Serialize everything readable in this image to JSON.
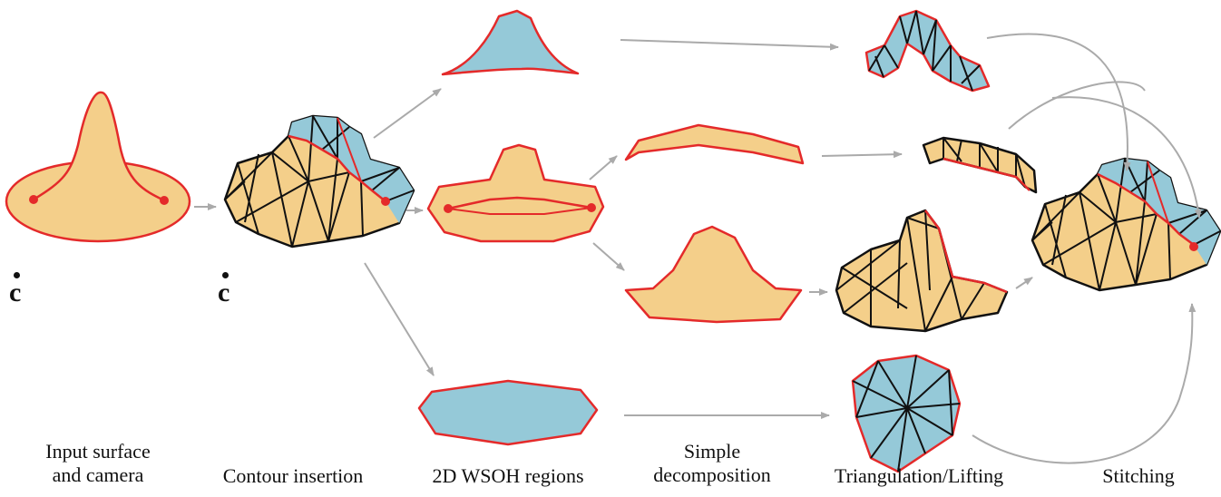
{
  "colors": {
    "surface_fill": "#f4cf8a",
    "hidden_fill": "#95c9d8",
    "contour": "#e42a2a",
    "edge": "#111111",
    "arrow": "#aaaaaa"
  },
  "camera": {
    "label": "c"
  },
  "stages": [
    {
      "id": "input",
      "caption_lines": [
        "Input surface",
        "and camera"
      ]
    },
    {
      "id": "contour",
      "caption_lines": [
        "Contour insertion"
      ]
    },
    {
      "id": "wsoh",
      "caption_lines": [
        "2D WSOH regions"
      ]
    },
    {
      "id": "decomp",
      "caption_lines": [
        "Simple",
        "decomposition"
      ]
    },
    {
      "id": "triangulation",
      "caption_lines": [
        "Triangulation/Lifting"
      ]
    },
    {
      "id": "stitching",
      "caption_lines": [
        "Stitching"
      ]
    }
  ]
}
